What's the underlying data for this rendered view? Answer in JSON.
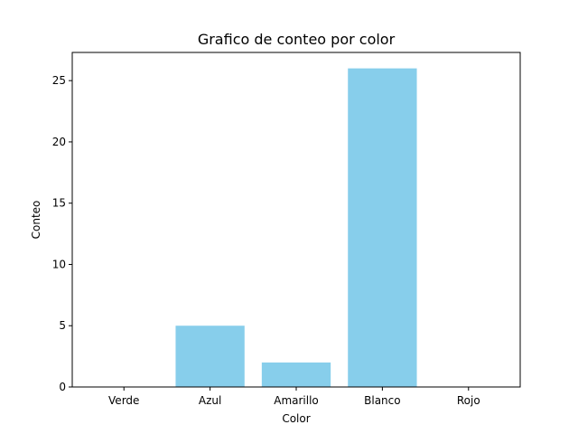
{
  "chart_data": {
    "type": "bar",
    "title": "Grafico de conteo por color",
    "xlabel": "Color",
    "ylabel": "Conteo",
    "categories": [
      "Verde",
      "Azul",
      "Amarillo",
      "Blanco",
      "Rojo"
    ],
    "values": [
      0,
      5,
      2,
      26,
      0
    ],
    "ylim": [
      0,
      27.3
    ],
    "yticks": [
      0,
      5,
      10,
      15,
      20,
      25
    ],
    "bar_color": "#87ceeb",
    "grid": false,
    "legend": "none"
  }
}
